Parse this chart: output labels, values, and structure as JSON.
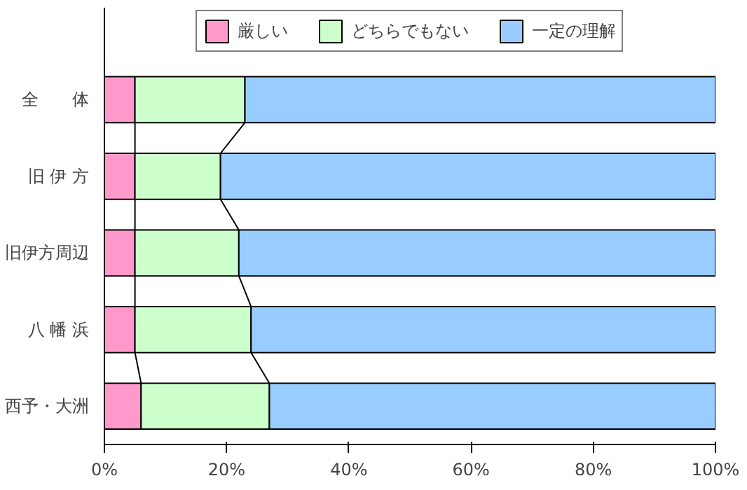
{
  "chart_data": {
    "type": "bar",
    "orientation": "horizontal",
    "stacked": true,
    "categories": [
      "全　　体",
      "旧 伊 方",
      "旧伊方周辺",
      "八 幡 浜",
      "西予・大洲"
    ],
    "series": [
      {
        "name": "厳しい",
        "color": "#ff99cc",
        "values": [
          5,
          5,
          5,
          5,
          6
        ]
      },
      {
        "name": "どちらでもない",
        "color": "#ccffcc",
        "values": [
          18,
          14,
          17,
          19,
          21
        ]
      },
      {
        "name": "一定の理解",
        "color": "#99ccff",
        "values": [
          77,
          81,
          78,
          76,
          73
        ]
      }
    ],
    "xlim": [
      0,
      100
    ],
    "xticks": [
      {
        "value": 0,
        "label": "0%"
      },
      {
        "value": 20,
        "label": "20%"
      },
      {
        "value": 40,
        "label": "40%"
      },
      {
        "value": 60,
        "label": "60%"
      },
      {
        "value": 80,
        "label": "80%"
      },
      {
        "value": 100,
        "label": "100%"
      }
    ],
    "grid": false,
    "legend": "top"
  }
}
